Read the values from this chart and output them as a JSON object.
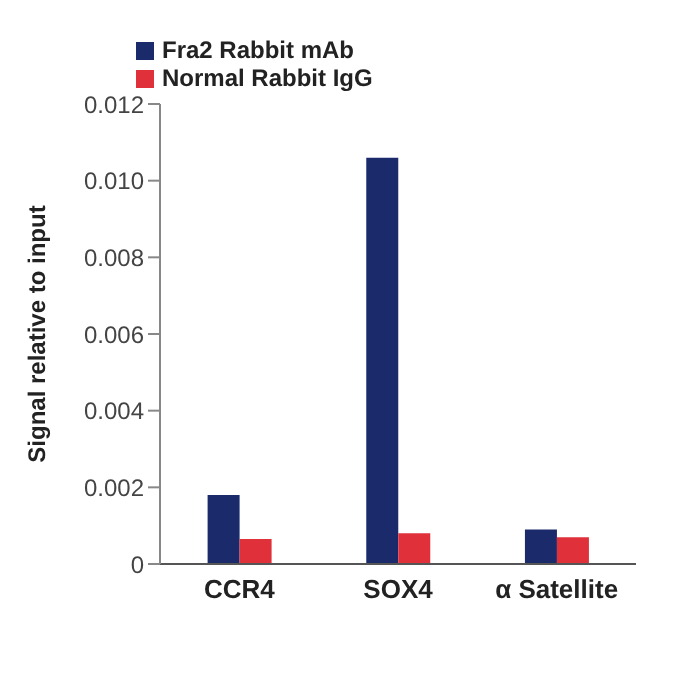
{
  "chart_data": {
    "type": "bar",
    "ylabel": "Signal relative to input",
    "categories": [
      "CCR4",
      "SOX4",
      "α Satellite"
    ],
    "series": [
      {
        "name": "Fra2 Rabbit mAb",
        "color": "#1b2a6b",
        "values": [
          0.0018,
          0.0106,
          0.0009
        ]
      },
      {
        "name": "Normal Rabbit IgG",
        "color": "#e0313b",
        "values": [
          0.00065,
          0.0008,
          0.0007
        ]
      }
    ],
    "ylim": [
      0,
      0.012
    ],
    "yticks": [
      {
        "value": 0,
        "label": "0"
      },
      0.002,
      0.004,
      0.006,
      0.008,
      {
        "value": 0.01,
        "label": "0.010"
      },
      0.012
    ],
    "grid": false,
    "legend": "top left"
  }
}
